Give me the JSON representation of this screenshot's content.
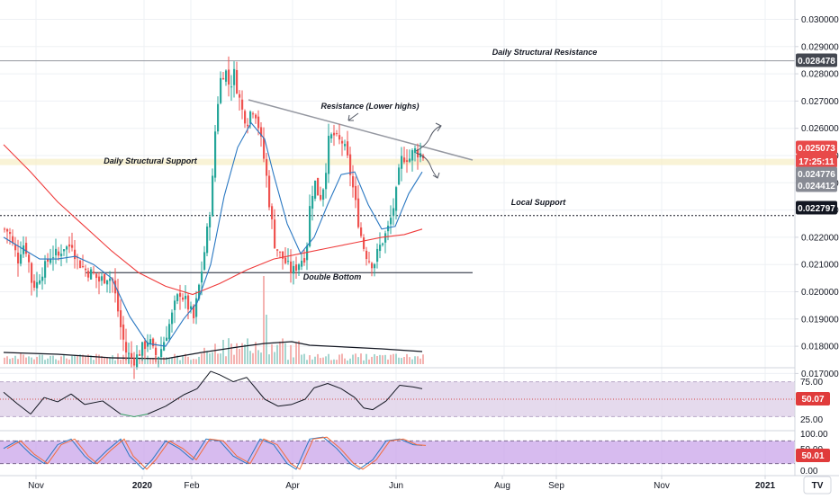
{
  "chart_data": [
    {
      "type": "candlestick",
      "panel": "price",
      "y_axis_ticks": [
        0.03,
        0.029,
        0.028,
        0.027,
        0.026,
        0.025,
        0.024,
        0.023,
        0.022,
        0.021,
        0.02,
        0.019,
        0.018,
        0.017
      ],
      "y_axis_tick_labels": [
        "0.030000",
        "0.029000",
        "0.028000",
        "0.027000",
        "0.026000",
        "0.025000",
        "0.024000",
        "0.023000",
        "0.022000",
        "0.021000",
        "0.020000",
        "0.019000",
        "0.018000",
        "0.017000"
      ],
      "ylim": [
        0.0166,
        0.0312
      ],
      "x_axis_labels": [
        "Nov",
        "2020",
        "Feb",
        "Apr",
        "Jun",
        "Aug",
        "Sep",
        "Nov",
        "2021"
      ],
      "close_path": [
        [
          0,
          0.0223
        ],
        [
          5,
          0.0222
        ],
        [
          10,
          0.0216
        ],
        [
          15,
          0.0212
        ],
        [
          20,
          0.0218
        ],
        [
          25,
          0.0215
        ],
        [
          30,
          0.0204
        ],
        [
          35,
          0.0202
        ],
        [
          40,
          0.0207
        ],
        [
          45,
          0.0209
        ],
        [
          50,
          0.0213
        ],
        [
          55,
          0.0214
        ],
        [
          60,
          0.0213
        ],
        [
          65,
          0.0217
        ],
        [
          70,
          0.0216
        ],
        [
          75,
          0.0218
        ],
        [
          80,
          0.0212
        ],
        [
          85,
          0.021
        ],
        [
          90,
          0.0208
        ],
        [
          95,
          0.0207
        ],
        [
          100,
          0.0206
        ],
        [
          105,
          0.0204
        ],
        [
          110,
          0.0205
        ],
        [
          115,
          0.0206
        ],
        [
          120,
          0.0204
        ],
        [
          125,
          0.0195
        ],
        [
          130,
          0.0185
        ],
        [
          135,
          0.0178
        ],
        [
          140,
          0.0176
        ],
        [
          145,
          0.0175
        ],
        [
          150,
          0.0178
        ],
        [
          155,
          0.018
        ],
        [
          160,
          0.0183
        ],
        [
          165,
          0.0178
        ],
        [
          170,
          0.0176
        ],
        [
          175,
          0.018
        ],
        [
          180,
          0.0185
        ],
        [
          185,
          0.019
        ],
        [
          190,
          0.0196
        ],
        [
          195,
          0.02
        ],
        [
          200,
          0.0197
        ],
        [
          205,
          0.0194
        ],
        [
          210,
          0.019
        ],
        [
          215,
          0.02
        ],
        [
          220,
          0.021
        ],
        [
          225,
          0.0222
        ],
        [
          230,
          0.0235
        ],
        [
          235,
          0.0265
        ],
        [
          240,
          0.0278
        ],
        [
          245,
          0.0282
        ],
        [
          250,
          0.0275
        ],
        [
          255,
          0.028
        ],
        [
          260,
          0.0272
        ],
        [
          265,
          0.0265
        ],
        [
          270,
          0.0263
        ],
        [
          275,
          0.0268
        ],
        [
          280,
          0.0265
        ],
        [
          285,
          0.0255
        ],
        [
          290,
          0.0245
        ],
        [
          295,
          0.023
        ],
        [
          300,
          0.0218
        ],
        [
          305,
          0.0214
        ],
        [
          310,
          0.0212
        ],
        [
          315,
          0.0209
        ],
        [
          320,
          0.0207
        ],
        [
          325,
          0.021
        ],
        [
          330,
          0.0212
        ],
        [
          335,
          0.0214
        ],
        [
          340,
          0.0235
        ],
        [
          345,
          0.024
        ],
        [
          350,
          0.0234
        ],
        [
          355,
          0.024
        ],
        [
          360,
          0.0255
        ],
        [
          365,
          0.0258
        ],
        [
          370,
          0.0255
        ],
        [
          375,
          0.0255
        ],
        [
          380,
          0.025
        ],
        [
          385,
          0.0242
        ],
        [
          390,
          0.0232
        ],
        [
          395,
          0.0222
        ],
        [
          400,
          0.0215
        ],
        [
          405,
          0.0212
        ],
        [
          410,
          0.021
        ],
        [
          415,
          0.0215
        ],
        [
          420,
          0.0219
        ],
        [
          425,
          0.0222
        ],
        [
          430,
          0.0228
        ],
        [
          435,
          0.0236
        ],
        [
          440,
          0.0248
        ],
        [
          445,
          0.025
        ],
        [
          450,
          0.0249
        ],
        [
          455,
          0.0252
        ],
        [
          460,
          0.0251
        ],
        [
          465,
          0.025
        ]
      ],
      "ma_fast": [
        [
          0,
          0.022
        ],
        [
          20,
          0.0216
        ],
        [
          40,
          0.0212
        ],
        [
          60,
          0.0212
        ],
        [
          80,
          0.0213
        ],
        [
          100,
          0.021
        ],
        [
          120,
          0.0205
        ],
        [
          140,
          0.0191
        ],
        [
          160,
          0.0181
        ],
        [
          180,
          0.018
        ],
        [
          200,
          0.019
        ],
        [
          215,
          0.0196
        ],
        [
          230,
          0.021
        ],
        [
          245,
          0.0235
        ],
        [
          260,
          0.0253
        ],
        [
          275,
          0.0262
        ],
        [
          290,
          0.0256
        ],
        [
          300,
          0.0243
        ],
        [
          315,
          0.0225
        ],
        [
          330,
          0.0214
        ],
        [
          345,
          0.022
        ],
        [
          360,
          0.0232
        ],
        [
          375,
          0.0243
        ],
        [
          390,
          0.0244
        ],
        [
          405,
          0.0232
        ],
        [
          420,
          0.0223
        ],
        [
          435,
          0.0224
        ],
        [
          450,
          0.0236
        ],
        [
          465,
          0.0244
        ]
      ],
      "ma_slow": [
        [
          0,
          0.0254
        ],
        [
          30,
          0.0244
        ],
        [
          60,
          0.0233
        ],
        [
          90,
          0.0224
        ],
        [
          120,
          0.0215
        ],
        [
          150,
          0.0207
        ],
        [
          180,
          0.0202
        ],
        [
          210,
          0.0199
        ],
        [
          240,
          0.0203
        ],
        [
          270,
          0.0208
        ],
        [
          300,
          0.0212
        ],
        [
          330,
          0.0214
        ],
        [
          360,
          0.0216
        ],
        [
          390,
          0.0218
        ],
        [
          420,
          0.022
        ],
        [
          445,
          0.0221
        ],
        [
          465,
          0.0223
        ]
      ],
      "price_labels": [
        {
          "value": "0.028478",
          "style": "dark"
        },
        {
          "value": "0.025073",
          "style": "red"
        },
        {
          "value": "17:25:11",
          "style": "red"
        },
        {
          "value": "0.024776",
          "style": "gray"
        },
        {
          "value": "0.024412",
          "style": "gray"
        },
        {
          "value": "0.022797",
          "style": "black"
        }
      ],
      "annotations": [
        {
          "text": "Daily Structural Resistance"
        },
        {
          "text": "Resistance (Lower highs)"
        },
        {
          "text": "Daily Structural Support"
        },
        {
          "text": "Local Support"
        },
        {
          "text": "Double Bottom"
        }
      ],
      "levels": {
        "daily_structural_resistance": 0.028478,
        "local_support": 0.022797,
        "double_bottom": 0.0207,
        "support_zone": [
          0.02465,
          0.02488
        ]
      }
    },
    {
      "type": "line",
      "panel": "rsi",
      "y_axis_tick_labels": [
        "75.00",
        "25.00"
      ],
      "ylim": [
        15,
        85
      ],
      "band": [
        30,
        70
      ],
      "mid": 50,
      "current_label": "50.07",
      "values": [
        [
          0,
          58
        ],
        [
          15,
          45
        ],
        [
          30,
          33
        ],
        [
          45,
          52
        ],
        [
          60,
          47
        ],
        [
          75,
          56
        ],
        [
          90,
          44
        ],
        [
          110,
          48
        ],
        [
          130,
          33
        ],
        [
          145,
          30
        ],
        [
          160,
          33
        ],
        [
          180,
          42
        ],
        [
          200,
          55
        ],
        [
          215,
          62
        ],
        [
          230,
          82
        ],
        [
          240,
          78
        ],
        [
          255,
          70
        ],
        [
          270,
          75
        ],
        [
          290,
          50
        ],
        [
          305,
          42
        ],
        [
          320,
          44
        ],
        [
          335,
          50
        ],
        [
          345,
          63
        ],
        [
          360,
          68
        ],
        [
          375,
          62
        ],
        [
          390,
          52
        ],
        [
          400,
          40
        ],
        [
          410,
          38
        ],
        [
          425,
          48
        ],
        [
          440,
          66
        ],
        [
          455,
          64
        ],
        [
          465,
          62
        ]
      ]
    },
    {
      "type": "line",
      "panel": "stoch",
      "y_axis_tick_labels": [
        "100.00",
        "50.00",
        "0.00"
      ],
      "ylim": [
        0,
        100
      ],
      "band": [
        20,
        80
      ],
      "current_label": "50.01",
      "values": [
        [
          0,
          60
        ],
        [
          15,
          80
        ],
        [
          30,
          45
        ],
        [
          45,
          20
        ],
        [
          60,
          70
        ],
        [
          75,
          85
        ],
        [
          90,
          40
        ],
        [
          100,
          20
        ],
        [
          115,
          55
        ],
        [
          130,
          85
        ],
        [
          140,
          40
        ],
        [
          155,
          5
        ],
        [
          165,
          30
        ],
        [
          180,
          80
        ],
        [
          195,
          60
        ],
        [
          210,
          30
        ],
        [
          225,
          85
        ],
        [
          240,
          80
        ],
        [
          255,
          40
        ],
        [
          270,
          20
        ],
        [
          285,
          85
        ],
        [
          300,
          70
        ],
        [
          315,
          20
        ],
        [
          325,
          5
        ],
        [
          340,
          85
        ],
        [
          355,
          90
        ],
        [
          370,
          60
        ],
        [
          385,
          20
        ],
        [
          395,
          5
        ],
        [
          410,
          30
        ],
        [
          425,
          80
        ],
        [
          440,
          85
        ],
        [
          455,
          70
        ],
        [
          465,
          68
        ]
      ]
    }
  ],
  "tv_logo": "TV"
}
